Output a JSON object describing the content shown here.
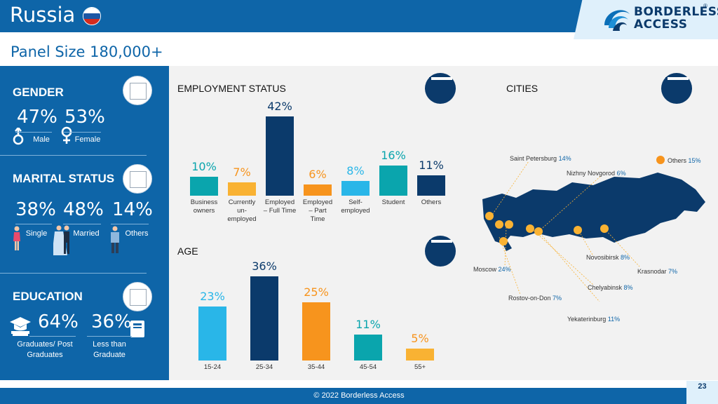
{
  "header": {
    "title": "Russia",
    "logo_line1": "BORDERLESS",
    "logo_line2": "ACCESS",
    "logo_reg": "®"
  },
  "panel_size": "Panel Size 180,000+",
  "gender": {
    "title": "GENDER",
    "items": [
      {
        "pct": "47%",
        "label": "Male",
        "icon": "male-icon"
      },
      {
        "pct": "53%",
        "label": "Female",
        "icon": "female-icon"
      }
    ]
  },
  "marital": {
    "title": "MARITAL STATUS",
    "items": [
      {
        "pct": "38%",
        "label": "Single"
      },
      {
        "pct": "48%",
        "label": "Married"
      },
      {
        "pct": "14%",
        "label": "Others"
      }
    ]
  },
  "education": {
    "title": "EDUCATION",
    "items": [
      {
        "pct": "64%",
        "label": "Graduates/ Post Graduates"
      },
      {
        "pct": "36%",
        "label": "Less than Graduate"
      }
    ]
  },
  "employment": {
    "title": "EMPLOYMENT STATUS",
    "value_labels": [
      "10%",
      "7%",
      "42%",
      "6%",
      "8%",
      "16%",
      "11%"
    ],
    "category_labels": [
      "Business owners",
      "Currently un-employed",
      "Employed – Full Time",
      "Employed – Part Time",
      "Self-employed",
      "Student",
      "Others"
    ]
  },
  "age": {
    "title": "AGE",
    "value_labels": [
      "23%",
      "36%",
      "25%",
      "11%",
      "5%"
    ],
    "category_labels": [
      "15-24",
      "25-34",
      "35-44",
      "45-54",
      "55+"
    ]
  },
  "cities": {
    "title": "CITIES",
    "items": [
      {
        "name": "Saint Petersburg",
        "value": "14%"
      },
      {
        "name": "Nizhny Novgorod",
        "value": "6%"
      },
      {
        "name": "Others",
        "value": "15%"
      },
      {
        "name": "Novosibirsk",
        "value": "8%"
      },
      {
        "name": "Moscow",
        "value": "24%"
      },
      {
        "name": "Krasnodar",
        "value": "7%"
      },
      {
        "name": "Chelyabinsk",
        "value": "8%"
      },
      {
        "name": "Rostov-on-Don",
        "value": "7%"
      },
      {
        "name": "Yekaterinburg",
        "value": "11%"
      }
    ]
  },
  "footer": {
    "copyright": "© 2022 Borderless Access",
    "page": "23"
  },
  "colors": {
    "primary": "#0e65a8",
    "dark": "#0b3a6b",
    "teal": "#0aa5ad",
    "orange": "#f7941d",
    "sky": "#29b6e8",
    "yellow": "#f9b233"
  },
  "chart_data": [
    {
      "type": "bar",
      "title": "EMPLOYMENT STATUS",
      "categories": [
        "Business owners",
        "Currently un-employed",
        "Employed – Full Time",
        "Employed – Part Time",
        "Self-employed",
        "Student",
        "Others"
      ],
      "values": [
        10,
        7,
        42,
        6,
        8,
        16,
        11
      ],
      "colors": [
        "#0aa5ad",
        "#f9b233",
        "#0b3a6b",
        "#f7941d",
        "#29b6e8",
        "#0aa5ad",
        "#0b3a6b"
      ]
    },
    {
      "type": "bar",
      "title": "AGE",
      "categories": [
        "15-24",
        "25-34",
        "35-44",
        "45-54",
        "55+"
      ],
      "values": [
        23,
        36,
        25,
        11,
        5
      ],
      "colors": [
        "#29b6e8",
        "#0b3a6b",
        "#f7941d",
        "#0aa5ad",
        "#f9b233"
      ]
    }
  ]
}
